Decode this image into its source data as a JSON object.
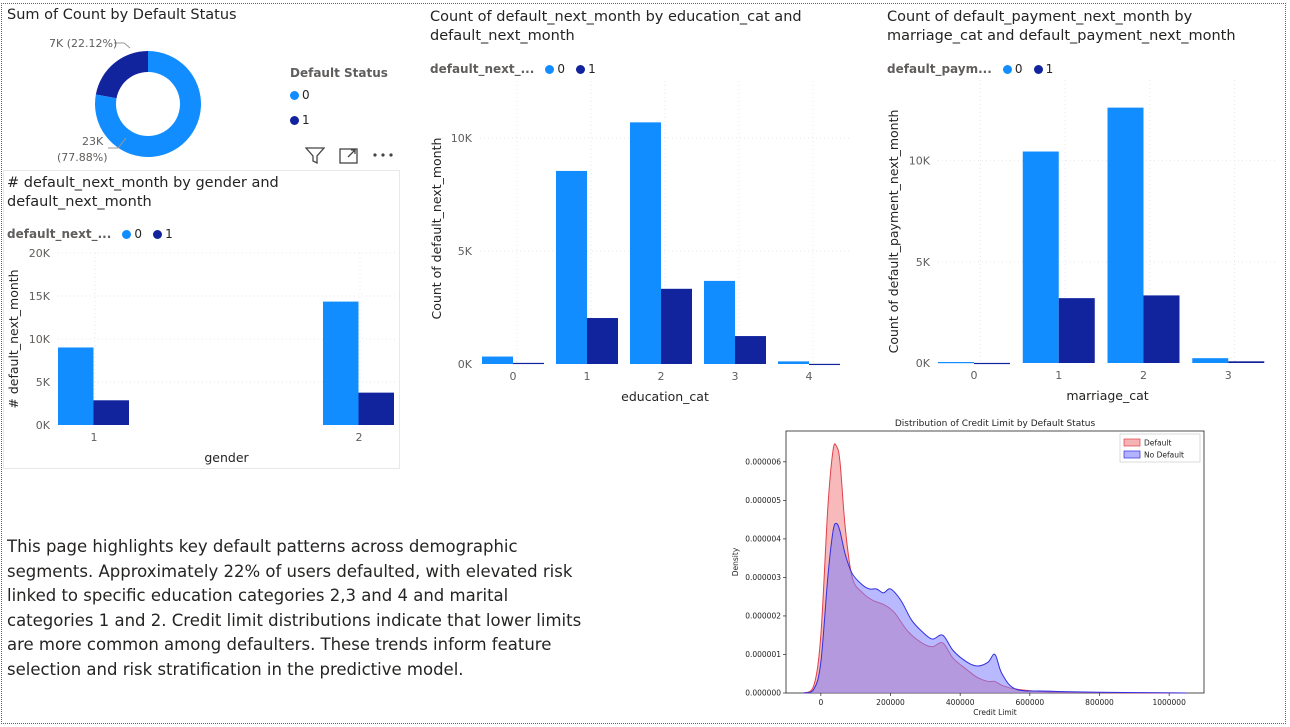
{
  "colors": {
    "c0": "#118DFF",
    "c1": "#12239E",
    "defaultFill": "#f08080",
    "noDefaultFill": "#8080ff"
  },
  "donut": {
    "title": "Sum of Count by Default Status",
    "legend_title": "Default Status",
    "legend_items": [
      "0",
      "1"
    ],
    "label_1": "7K (22.12%)",
    "label_0_line1": "23K",
    "label_0_line2": "(77.88%)"
  },
  "header_icons": [
    "filter-icon",
    "focus-mode-icon",
    "more-options-icon"
  ],
  "description": "This page highlights key default patterns across demographic segments. Approximately 22% of users defaulted, with elevated risk linked to specific education categories 2,3 and 4 and marital categories 1 and 2. Credit limit distributions indicate that lower limits are more common among defaulters. These trends inform feature selection and risk stratification in the predictive model.",
  "chart_data": [
    {
      "type": "pie",
      "title": "Sum of Count by Default Status",
      "categories": [
        "0",
        "1"
      ],
      "values": [
        23364,
        6636
      ],
      "data_labels": [
        "23K (77.88%)",
        "7K (22.12%)"
      ],
      "legend": "right"
    },
    {
      "type": "bar",
      "title": "# default_next_month by gender and default_next_month",
      "legend_title": "default_next_...",
      "categories": [
        "1",
        "2"
      ],
      "series": [
        {
          "name": "0",
          "values": [
            9015,
            14349
          ]
        },
        {
          "name": "1",
          "values": [
            2873,
            3763
          ]
        }
      ],
      "xlabel": "gender",
      "ylabel": "# default_next_month",
      "ylim": [
        0,
        20000
      ],
      "yticks": [
        "0K",
        "5K",
        "10K",
        "15K",
        "20K"
      ],
      "grid": true
    },
    {
      "type": "bar",
      "title": "Count of default_next_month by education_cat and default_next_month",
      "legend_title": "default_next_...",
      "categories": [
        "0",
        "1",
        "2",
        "3",
        "4"
      ],
      "series": [
        {
          "name": "0",
          "values": [
            330,
            8549,
            10700,
            3680,
            116
          ]
        },
        {
          "name": "1",
          "values": [
            50,
            2036,
            3330,
            1237,
            7
          ]
        }
      ],
      "xlabel": "education_cat",
      "ylabel": "Count of default_next_month",
      "ylim": [
        0,
        12000
      ],
      "yticks": [
        "0K",
        "5K",
        "10K"
      ],
      "grid": true
    },
    {
      "type": "bar",
      "title": "Count of default_payment_next_month by marriage_cat and default_payment_next_month",
      "legend_title": "default_paym...",
      "categories": [
        "0",
        "1",
        "2",
        "3"
      ],
      "series": [
        {
          "name": "0",
          "values": [
            49,
            10453,
            12623,
            239
          ]
        },
        {
          "name": "1",
          "values": [
            5,
            3206,
            3341,
            84
          ]
        }
      ],
      "xlabel": "marriage_cat",
      "ylabel": "Count of default_payment_next_month",
      "ylim": [
        0,
        13000
      ],
      "yticks": [
        "0K",
        "5K",
        "10K"
      ],
      "grid": true
    },
    {
      "type": "area",
      "title": "Distribution of Credit Limit by Default Status",
      "xlabel": "Credit Limit",
      "ylabel": "Density",
      "xlim": [
        -100000,
        1100000
      ],
      "ylim": [
        0,
        6.8e-06
      ],
      "xticks": [
        "0",
        "200000",
        "400000",
        "600000",
        "800000",
        "1000000"
      ],
      "yticks": [
        "0.000000",
        "0.000001",
        "0.000002",
        "0.000003",
        "0.000004",
        "0.000005",
        "0.000006"
      ],
      "legend": "top-right",
      "series": [
        {
          "name": "Default",
          "x": [
            -50000,
            -20000,
            0,
            20000,
            35000,
            45000,
            55000,
            70000,
            90000,
            120000,
            150000,
            180000,
            210000,
            250000,
            290000,
            320000,
            350000,
            380000,
            420000,
            450000,
            480000,
            500000,
            520000,
            560000,
            650000,
            800000,
            1050000
          ],
          "y": [
            0,
            2e-07,
            1.5e-06,
            4.8e-06,
            6.3e-06,
            6.4e-06,
            6e-06,
            4.3e-06,
            3e-06,
            2.6e-06,
            2.4e-06,
            2.3e-06,
            2.1e-06,
            1.6e-06,
            1.3e-06,
            1.2e-06,
            1.3e-06,
            9e-07,
            6e-07,
            4e-07,
            3e-07,
            3e-07,
            2e-07,
            1e-07,
            3e-08,
            1e-08,
            0
          ]
        },
        {
          "name": "No Default",
          "x": [
            -50000,
            -20000,
            0,
            20000,
            35000,
            45000,
            55000,
            70000,
            90000,
            120000,
            140000,
            160000,
            180000,
            200000,
            230000,
            260000,
            290000,
            320000,
            350000,
            380000,
            420000,
            450000,
            480000,
            500000,
            520000,
            560000,
            650000,
            800000,
            1050000
          ],
          "y": [
            0,
            1e-07,
            8e-07,
            3e-06,
            4.2e-06,
            4.4e-06,
            4.2e-06,
            3.6e-06,
            3.1e-06,
            2.8e-06,
            2.7e-06,
            2.7e-06,
            2.6e-06,
            2.7e-06,
            2.4e-06,
            1.9e-06,
            1.6e-06,
            1.4e-06,
            1.5e-06,
            1.1e-06,
            8e-07,
            7e-07,
            8e-07,
            1e-06,
            5e-07,
            1e-07,
            5e-08,
            2e-08,
            0
          ]
        }
      ]
    }
  ]
}
